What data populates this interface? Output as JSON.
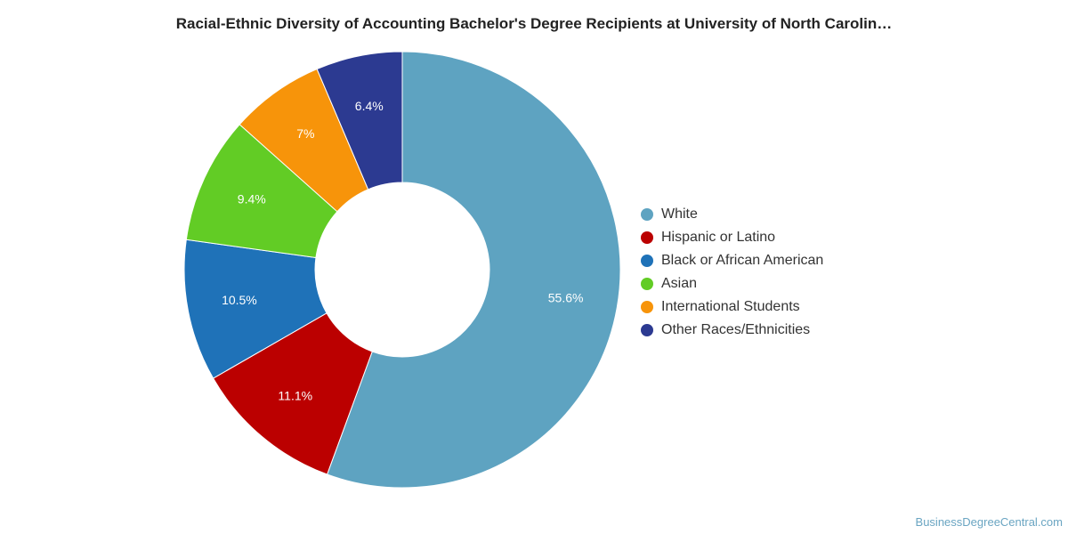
{
  "chart_data": {
    "type": "pie",
    "variant": "donut",
    "title": "Racial-Ethnic Diversity of Accounting Bachelor's Degree Recipients at University of North Carolin…",
    "categories": [
      "White",
      "Hispanic or Latino",
      "Black or African American",
      "Asian",
      "International Students",
      "Other Races/Ethnicities"
    ],
    "values": [
      55.6,
      11.1,
      10.5,
      9.4,
      7.0,
      6.4
    ],
    "value_labels": [
      "55.6%",
      "11.1%",
      "10.5%",
      "9.4%",
      "7%",
      "6.4%"
    ],
    "colors": [
      "#5ea3c1",
      "#bb0000",
      "#1f72b8",
      "#62cc25",
      "#f7940a",
      "#2c3a91"
    ],
    "legend_position": "right"
  },
  "source_credit": "BusinessDegreeCentral.com"
}
